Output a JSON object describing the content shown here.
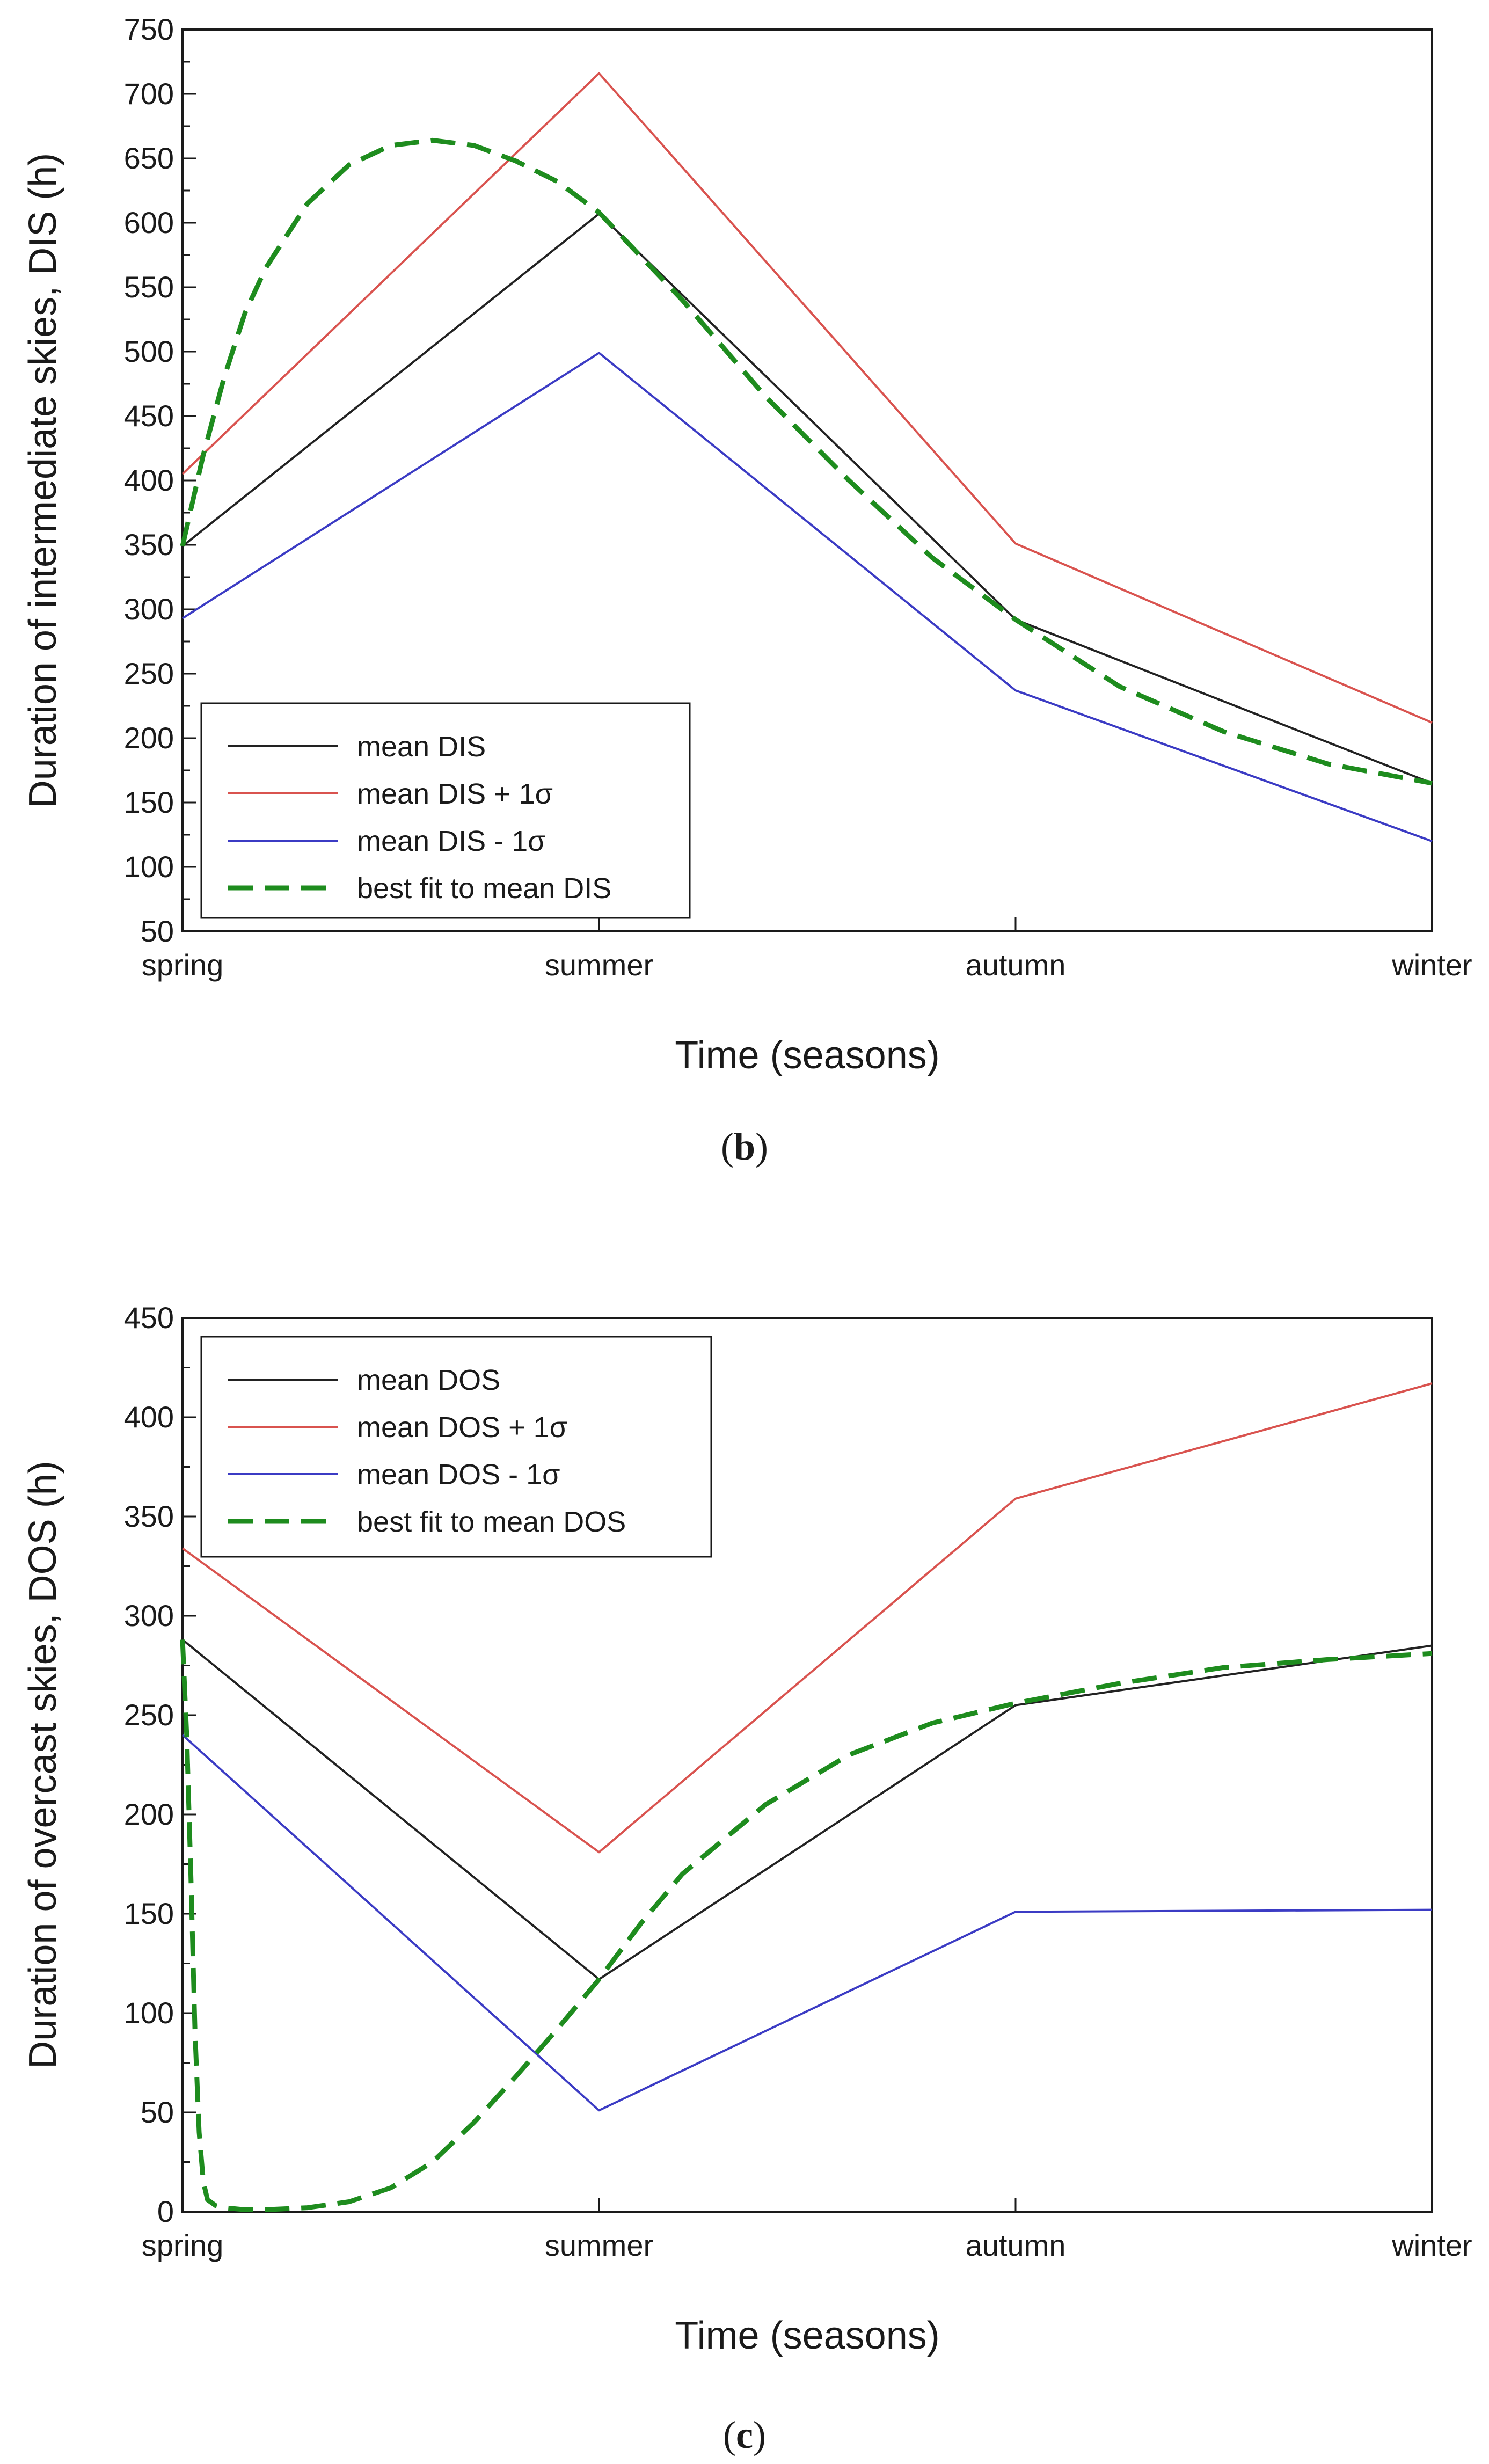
{
  "chart_data": [
    {
      "type": "line",
      "id": "b",
      "caption_letter": "b",
      "title": "",
      "xlabel": "Time (seasons)",
      "ylabel": "Duration of intermediate skies, DIS (h)",
      "categories": [
        "spring",
        "summer",
        "autumn",
        "winter"
      ],
      "ylim": [
        50,
        750
      ],
      "yticks": [
        50,
        100,
        150,
        200,
        250,
        300,
        350,
        400,
        450,
        500,
        550,
        600,
        650,
        700,
        750
      ],
      "grid": false,
      "legend_position": "bottom-left",
      "series": [
        {
          "name": "mean DIS",
          "color": "#222222",
          "style": "solid",
          "values": [
            349,
            607,
            292,
            165
          ]
        },
        {
          "name": "mean DIS + 1σ",
          "color": "#d9534f",
          "style": "solid",
          "values": [
            405,
            716,
            351,
            212
          ]
        },
        {
          "name": "mean DIS - 1σ",
          "color": "#3b3bc4",
          "style": "solid",
          "values": [
            293,
            499,
            237,
            120
          ]
        },
        {
          "name": "best fit to mean DIS",
          "color": "#1e8c1e",
          "style": "dashed",
          "x": [
            0,
            0.05,
            0.1,
            0.15,
            0.2,
            0.3,
            0.4,
            0.5,
            0.6,
            0.7,
            0.8,
            0.9,
            1.0,
            1.2,
            1.4,
            1.6,
            1.8,
            2.0,
            2.25,
            2.5,
            2.75,
            3.0
          ],
          "values": [
            349,
            420,
            480,
            530,
            565,
            615,
            645,
            660,
            664,
            660,
            648,
            632,
            608,
            540,
            465,
            400,
            340,
            292,
            240,
            205,
            180,
            165
          ]
        }
      ]
    },
    {
      "type": "line",
      "id": "c",
      "caption_letter": "c",
      "title": "",
      "xlabel": "Time (seasons)",
      "ylabel": "Duration of overcast skies, DOS (h)",
      "categories": [
        "spring",
        "summer",
        "autumn",
        "winter"
      ],
      "ylim": [
        0,
        450
      ],
      "yticks": [
        0,
        50,
        100,
        150,
        200,
        250,
        300,
        350,
        400,
        450
      ],
      "grid": false,
      "legend_position": "top-left",
      "series": [
        {
          "name": "mean DOS",
          "color": "#222222",
          "style": "solid",
          "values": [
            288,
            117,
            255,
            285
          ]
        },
        {
          "name": "mean DOS + 1σ",
          "color": "#d9534f",
          "style": "solid",
          "values": [
            334,
            181,
            359,
            417
          ]
        },
        {
          "name": "mean DOS - 1σ",
          "color": "#3b3bc4",
          "style": "solid",
          "values": [
            240,
            51,
            151,
            152
          ]
        },
        {
          "name": "best fit to mean DOS",
          "color": "#1e8c1e",
          "style": "dashed",
          "x": [
            0,
            0.01,
            0.02,
            0.03,
            0.04,
            0.05,
            0.06,
            0.08,
            0.1,
            0.15,
            0.2,
            0.3,
            0.4,
            0.5,
            0.6,
            0.7,
            0.8,
            0.9,
            1.0,
            1.1,
            1.2,
            1.4,
            1.6,
            1.8,
            2.0,
            2.25,
            2.5,
            2.75,
            3.0
          ],
          "values": [
            288,
            240,
            170,
            90,
            40,
            15,
            6,
            3,
            2,
            1,
            1,
            2,
            5,
            12,
            25,
            45,
            68,
            92,
            117,
            145,
            170,
            205,
            230,
            246,
            256,
            266,
            274,
            278,
            281
          ]
        }
      ]
    }
  ]
}
